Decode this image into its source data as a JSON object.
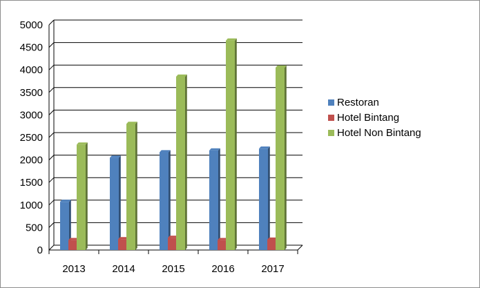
{
  "chart_data": {
    "type": "bar",
    "style": "3d-clustered-column",
    "categories": [
      "2013",
      "2014",
      "2015",
      "2016",
      "2017"
    ],
    "series": [
      {
        "name": "Restoran",
        "values": [
          1070,
          2050,
          2170,
          2210,
          2250
        ]
      },
      {
        "name": "Hotel Bintang",
        "values": [
          220,
          240,
          270,
          220,
          230
        ]
      },
      {
        "name": "Hotel Non Bintang",
        "values": [
          2340,
          2800,
          3850,
          4650,
          4050
        ]
      }
    ],
    "colors": {
      "Restoran": "#4f81bd",
      "Hotel Bintang": "#c0504d",
      "Hotel Non Bintang": "#9bbb59"
    },
    "ylim": [
      0,
      5000
    ],
    "yticks": [
      0,
      500,
      1000,
      1500,
      2000,
      2500,
      3000,
      3500,
      4000,
      4500,
      5000
    ],
    "grid": true,
    "legend": "right"
  }
}
